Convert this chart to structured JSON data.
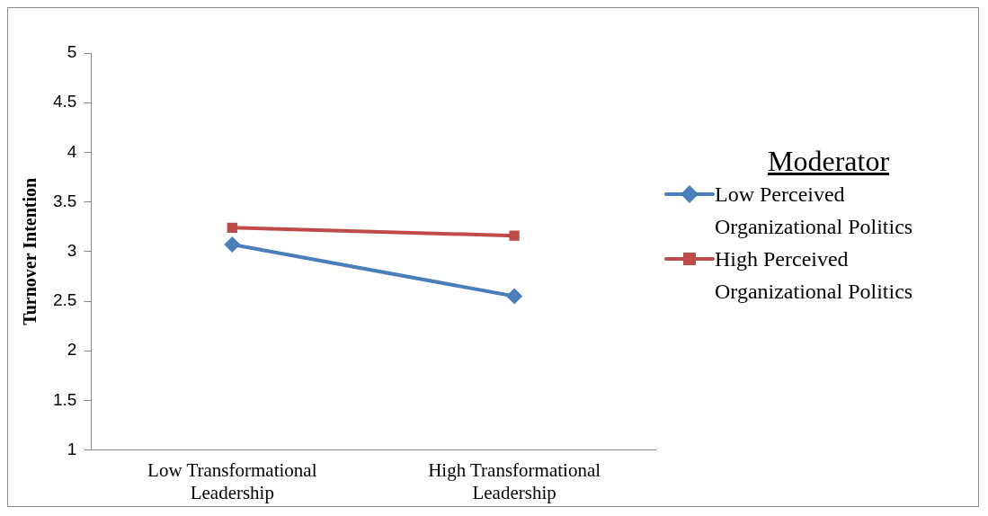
{
  "chart_data": {
    "type": "line",
    "ylabel": "Turnover Intention",
    "legend_title": "Moderator",
    "legend": "right",
    "grid": false,
    "categories": [
      "Low Transformational Leadership",
      "High Transformational Leadership"
    ],
    "ylim": [
      1,
      5
    ],
    "yticks": [
      1,
      1.5,
      2,
      2.5,
      3,
      3.5,
      4,
      4.5,
      5
    ],
    "series": [
      {
        "name": "Low Perceived Organizational Politics",
        "color": "#4a7ebb",
        "marker": "diamond",
        "values": [
          3.07,
          2.55
        ]
      },
      {
        "name": "High Perceived Organizational Politics",
        "color": "#be4b48",
        "marker": "square",
        "values": [
          3.24,
          3.16
        ]
      }
    ]
  }
}
